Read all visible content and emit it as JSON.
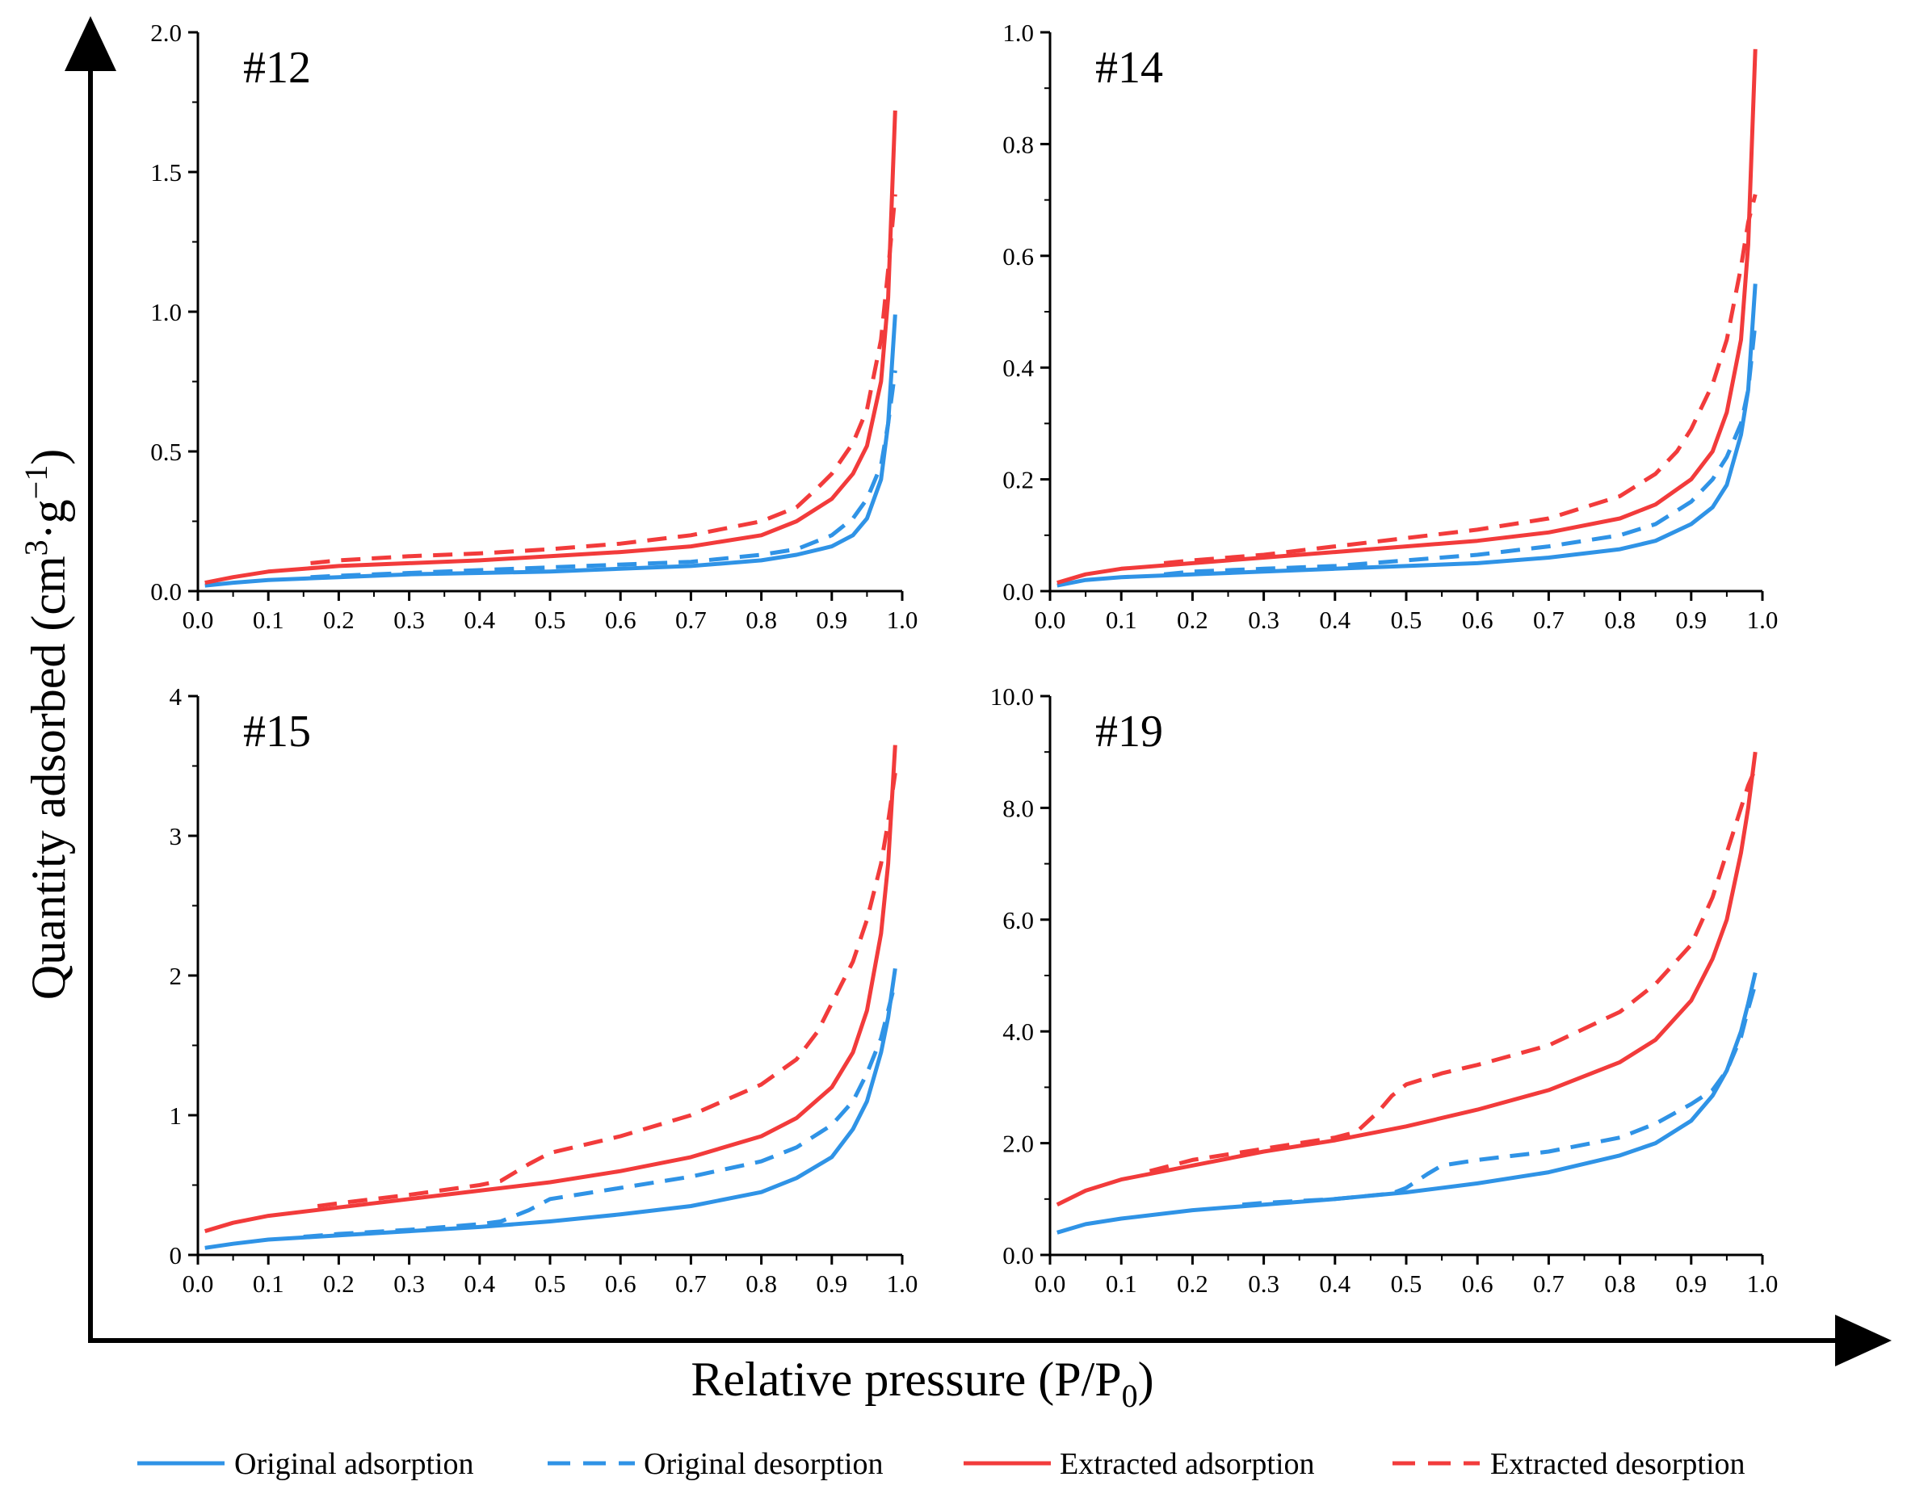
{
  "chart_data": {
    "type": "line",
    "xlabel": "Relative pressure (P/P",
    "xlabel_sub": "0",
    "xlabel_end": ")",
    "ylabel": "Quantity adsorbed (cm",
    "ylabel_sup1": "3",
    "ylabel_mid": "·g",
    "ylabel_sup2": "−1",
    "ylabel_end": ")",
    "legend_placement": "bottom",
    "colors": {
      "original": "#2f93e6",
      "extracted": "#f23b3b",
      "axis": "#000000"
    },
    "legend": [
      {
        "name": "Original adsorption",
        "color": "#2f93e6",
        "dashed": false
      },
      {
        "name": "Original desorption",
        "color": "#2f93e6",
        "dashed": true
      },
      {
        "name": "Extracted adsorption",
        "color": "#f23b3b",
        "dashed": false
      },
      {
        "name": "Extracted desorption",
        "color": "#f23b3b",
        "dashed": true
      }
    ],
    "panels": [
      {
        "title": "#12",
        "xlim": [
          0,
          1.0
        ],
        "ylim": [
          0,
          2.0
        ],
        "xticks": [
          "0.0",
          "0.1",
          "0.2",
          "0.3",
          "0.4",
          "0.5",
          "0.6",
          "0.7",
          "0.8",
          "0.9",
          "1.0"
        ],
        "yticks": [
          {
            "v": 0,
            "label": "0.0"
          },
          {
            "v": 0.5,
            "label": "0.5"
          },
          {
            "v": 1.0,
            "label": "1.0"
          },
          {
            "v": 1.5,
            "label": "1.5"
          },
          {
            "v": 2.0,
            "label": "2.0"
          }
        ],
        "series": [
          {
            "name": "Original adsorption",
            "x": [
              0.01,
              0.05,
              0.1,
              0.2,
              0.3,
              0.4,
              0.5,
              0.6,
              0.7,
              0.8,
              0.85,
              0.9,
              0.93,
              0.95,
              0.97,
              0.98,
              0.99
            ],
            "y": [
              0.02,
              0.03,
              0.04,
              0.05,
              0.06,
              0.065,
              0.07,
              0.08,
              0.09,
              0.11,
              0.13,
              0.16,
              0.2,
              0.26,
              0.4,
              0.6,
              0.99
            ]
          },
          {
            "name": "Original desorption",
            "x": [
              0.16,
              0.2,
              0.3,
              0.4,
              0.5,
              0.6,
              0.7,
              0.8,
              0.85,
              0.9,
              0.93,
              0.95,
              0.97,
              0.98,
              0.99
            ],
            "y": [
              0.05,
              0.055,
              0.065,
              0.075,
              0.085,
              0.095,
              0.105,
              0.13,
              0.15,
              0.2,
              0.26,
              0.33,
              0.45,
              0.6,
              0.79
            ]
          },
          {
            "name": "Extracted adsorption",
            "x": [
              0.01,
              0.05,
              0.1,
              0.2,
              0.3,
              0.4,
              0.5,
              0.6,
              0.7,
              0.8,
              0.85,
              0.9,
              0.93,
              0.95,
              0.97,
              0.98,
              0.99
            ],
            "y": [
              0.03,
              0.05,
              0.07,
              0.09,
              0.1,
              0.11,
              0.125,
              0.14,
              0.16,
              0.2,
              0.25,
              0.33,
              0.42,
              0.52,
              0.75,
              1.05,
              1.72
            ]
          },
          {
            "name": "Extracted desorption",
            "x": [
              0.16,
              0.2,
              0.3,
              0.4,
              0.5,
              0.6,
              0.7,
              0.8,
              0.85,
              0.88,
              0.9,
              0.93,
              0.95,
              0.97,
              0.98,
              0.99
            ],
            "y": [
              0.1,
              0.11,
              0.125,
              0.135,
              0.15,
              0.17,
              0.2,
              0.25,
              0.3,
              0.37,
              0.42,
              0.53,
              0.65,
              0.9,
              1.15,
              1.42
            ]
          }
        ]
      },
      {
        "title": "#14",
        "xlim": [
          0,
          1.0
        ],
        "ylim": [
          0,
          1.0
        ],
        "xticks": [
          "0.0",
          "0.1",
          "0.2",
          "0.3",
          "0.4",
          "0.5",
          "0.6",
          "0.7",
          "0.8",
          "0.9",
          "1.0"
        ],
        "yticks": [
          {
            "v": 0,
            "label": "0.0"
          },
          {
            "v": 0.2,
            "label": "0.2"
          },
          {
            "v": 0.4,
            "label": "0.4"
          },
          {
            "v": 0.6,
            "label": "0.6"
          },
          {
            "v": 0.8,
            "label": "0.8"
          },
          {
            "v": 1.0,
            "label": "1.0"
          }
        ],
        "series": [
          {
            "name": "Original adsorption",
            "x": [
              0.01,
              0.05,
              0.1,
              0.2,
              0.3,
              0.4,
              0.5,
              0.6,
              0.7,
              0.8,
              0.85,
              0.9,
              0.93,
              0.95,
              0.97,
              0.98,
              0.99
            ],
            "y": [
              0.01,
              0.02,
              0.025,
              0.03,
              0.035,
              0.04,
              0.045,
              0.05,
              0.06,
              0.075,
              0.09,
              0.12,
              0.15,
              0.19,
              0.28,
              0.36,
              0.55
            ]
          },
          {
            "name": "Original desorption",
            "x": [
              0.16,
              0.2,
              0.3,
              0.4,
              0.5,
              0.6,
              0.7,
              0.8,
              0.85,
              0.9,
              0.93,
              0.95,
              0.97,
              0.98,
              0.99
            ],
            "y": [
              0.03,
              0.035,
              0.04,
              0.045,
              0.055,
              0.065,
              0.08,
              0.1,
              0.12,
              0.16,
              0.2,
              0.24,
              0.3,
              0.36,
              0.48
            ]
          },
          {
            "name": "Extracted adsorption",
            "x": [
              0.01,
              0.05,
              0.1,
              0.2,
              0.3,
              0.4,
              0.5,
              0.6,
              0.7,
              0.8,
              0.85,
              0.9,
              0.93,
              0.95,
              0.97,
              0.98,
              0.99
            ],
            "y": [
              0.015,
              0.03,
              0.04,
              0.05,
              0.06,
              0.07,
              0.08,
              0.09,
              0.105,
              0.13,
              0.155,
              0.2,
              0.25,
              0.32,
              0.45,
              0.62,
              0.97
            ]
          },
          {
            "name": "Extracted desorption",
            "x": [
              0.16,
              0.2,
              0.3,
              0.4,
              0.5,
              0.6,
              0.7,
              0.8,
              0.85,
              0.88,
              0.9,
              0.93,
              0.95,
              0.97,
              0.98,
              0.99
            ],
            "y": [
              0.05,
              0.055,
              0.065,
              0.08,
              0.095,
              0.11,
              0.13,
              0.17,
              0.21,
              0.25,
              0.29,
              0.37,
              0.45,
              0.58,
              0.66,
              0.71
            ]
          }
        ]
      },
      {
        "title": "#15",
        "xlim": [
          0,
          1.0
        ],
        "ylim": [
          0,
          4
        ],
        "xticks": [
          "0.0",
          "0.1",
          "0.2",
          "0.3",
          "0.4",
          "0.5",
          "0.6",
          "0.7",
          "0.8",
          "0.9",
          "1.0"
        ],
        "yticks": [
          {
            "v": 0,
            "label": "0"
          },
          {
            "v": 1,
            "label": "1"
          },
          {
            "v": 2,
            "label": "2"
          },
          {
            "v": 3,
            "label": "3"
          },
          {
            "v": 4,
            "label": "4"
          }
        ],
        "series": [
          {
            "name": "Original adsorption",
            "x": [
              0.01,
              0.05,
              0.1,
              0.2,
              0.3,
              0.4,
              0.5,
              0.6,
              0.7,
              0.8,
              0.85,
              0.9,
              0.93,
              0.95,
              0.97,
              0.98,
              0.99
            ],
            "y": [
              0.05,
              0.08,
              0.11,
              0.14,
              0.17,
              0.2,
              0.24,
              0.29,
              0.35,
              0.45,
              0.55,
              0.7,
              0.9,
              1.1,
              1.45,
              1.7,
              2.05
            ]
          },
          {
            "name": "Original desorption",
            "x": [
              0.15,
              0.2,
              0.3,
              0.4,
              0.43,
              0.47,
              0.5,
              0.6,
              0.7,
              0.8,
              0.85,
              0.9,
              0.93,
              0.95,
              0.97,
              0.98,
              0.99
            ],
            "y": [
              0.13,
              0.15,
              0.18,
              0.22,
              0.24,
              0.32,
              0.4,
              0.48,
              0.56,
              0.67,
              0.77,
              0.93,
              1.1,
              1.3,
              1.55,
              1.75,
              1.95
            ]
          },
          {
            "name": "Extracted adsorption",
            "x": [
              0.01,
              0.05,
              0.1,
              0.2,
              0.3,
              0.4,
              0.5,
              0.6,
              0.7,
              0.8,
              0.85,
              0.9,
              0.93,
              0.95,
              0.97,
              0.98,
              0.99
            ],
            "y": [
              0.17,
              0.23,
              0.28,
              0.34,
              0.4,
              0.46,
              0.52,
              0.6,
              0.7,
              0.85,
              0.98,
              1.2,
              1.45,
              1.75,
              2.3,
              2.8,
              3.65
            ]
          },
          {
            "name": "Extracted desorption",
            "x": [
              0.17,
              0.2,
              0.3,
              0.4,
              0.43,
              0.47,
              0.5,
              0.6,
              0.7,
              0.8,
              0.85,
              0.88,
              0.9,
              0.93,
              0.95,
              0.97,
              0.98,
              0.99
            ],
            "y": [
              0.35,
              0.37,
              0.43,
              0.5,
              0.53,
              0.65,
              0.73,
              0.85,
              1.0,
              1.22,
              1.4,
              1.6,
              1.8,
              2.1,
              2.4,
              2.8,
              3.1,
              3.45
            ]
          }
        ]
      },
      {
        "title": "#19",
        "xlim": [
          0,
          1.0
        ],
        "ylim": [
          0,
          10.0
        ],
        "xticks": [
          "0.0",
          "0.1",
          "0.2",
          "0.3",
          "0.4",
          "0.5",
          "0.6",
          "0.7",
          "0.8",
          "0.9",
          "1.0"
        ],
        "yticks": [
          {
            "v": 0,
            "label": "0.0"
          },
          {
            "v": 2,
            "label": "2.0"
          },
          {
            "v": 4,
            "label": "4.0"
          },
          {
            "v": 6,
            "label": "6.0"
          },
          {
            "v": 8,
            "label": "8.0"
          },
          {
            "v": 10,
            "label": "10.0"
          }
        ],
        "series": [
          {
            "name": "Original adsorption",
            "x": [
              0.01,
              0.05,
              0.1,
              0.2,
              0.3,
              0.4,
              0.5,
              0.6,
              0.7,
              0.8,
              0.85,
              0.9,
              0.93,
              0.95,
              0.97,
              0.98,
              0.99
            ],
            "y": [
              0.4,
              0.55,
              0.65,
              0.8,
              0.9,
              1.0,
              1.12,
              1.28,
              1.48,
              1.78,
              2.0,
              2.4,
              2.85,
              3.3,
              4.0,
              4.5,
              5.05
            ]
          },
          {
            "name": "Original desorption",
            "x": [
              0.27,
              0.3,
              0.4,
              0.48,
              0.5,
              0.53,
              0.55,
              0.6,
              0.7,
              0.8,
              0.85,
              0.9,
              0.93,
              0.95,
              0.97,
              0.98,
              0.99
            ],
            "y": [
              0.9,
              0.93,
              1.0,
              1.1,
              1.2,
              1.45,
              1.6,
              1.7,
              1.85,
              2.1,
              2.35,
              2.7,
              2.95,
              3.3,
              3.9,
              4.4,
              4.85
            ]
          },
          {
            "name": "Extracted adsorption",
            "x": [
              0.01,
              0.05,
              0.1,
              0.2,
              0.3,
              0.4,
              0.5,
              0.6,
              0.7,
              0.8,
              0.85,
              0.9,
              0.93,
              0.95,
              0.97,
              0.98,
              0.99
            ],
            "y": [
              0.9,
              1.15,
              1.35,
              1.6,
              1.85,
              2.05,
              2.3,
              2.6,
              2.95,
              3.45,
              3.85,
              4.55,
              5.3,
              6.0,
              7.2,
              8.0,
              9.0
            ]
          },
          {
            "name": "Extracted desorption",
            "x": [
              0.14,
              0.2,
              0.3,
              0.4,
              0.43,
              0.46,
              0.48,
              0.5,
              0.55,
              0.6,
              0.7,
              0.8,
              0.85,
              0.9,
              0.93,
              0.95,
              0.97,
              0.98,
              0.99
            ],
            "y": [
              1.5,
              1.7,
              1.9,
              2.1,
              2.2,
              2.55,
              2.85,
              3.05,
              3.25,
              3.4,
              3.75,
              4.35,
              4.85,
              5.55,
              6.4,
              7.2,
              8.0,
              8.4,
              8.7
            ]
          }
        ]
      }
    ]
  }
}
